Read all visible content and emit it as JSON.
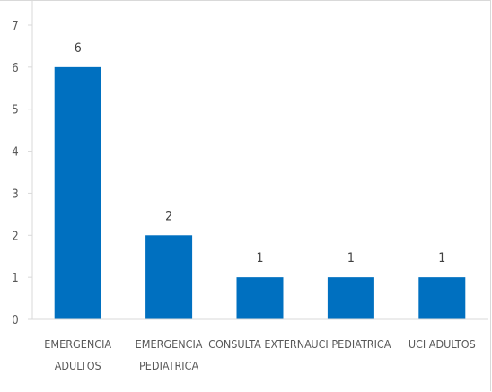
{
  "chart_data": {
    "type": "bar",
    "categories": [
      [
        "EMERGENCIA",
        "ADULTOS"
      ],
      [
        "EMERGENCIA",
        "PEDIATRICA"
      ],
      [
        "CONSULTA EXTERNA"
      ],
      [
        "UCI PEDIATRICA"
      ],
      [
        "UCI ADULTOS"
      ]
    ],
    "values": [
      6,
      2,
      1,
      1,
      1
    ],
    "data_labels": [
      "6",
      "2",
      "1",
      "1",
      "1"
    ],
    "ylim": [
      0,
      7
    ],
    "yticks": [
      "0",
      "1",
      "2",
      "3",
      "4",
      "5",
      "6",
      "7"
    ],
    "title": "",
    "xlabel": "",
    "ylabel": "",
    "grid": false,
    "bar_color": "#0070c0",
    "axis_color": "#d9d9d9"
  }
}
